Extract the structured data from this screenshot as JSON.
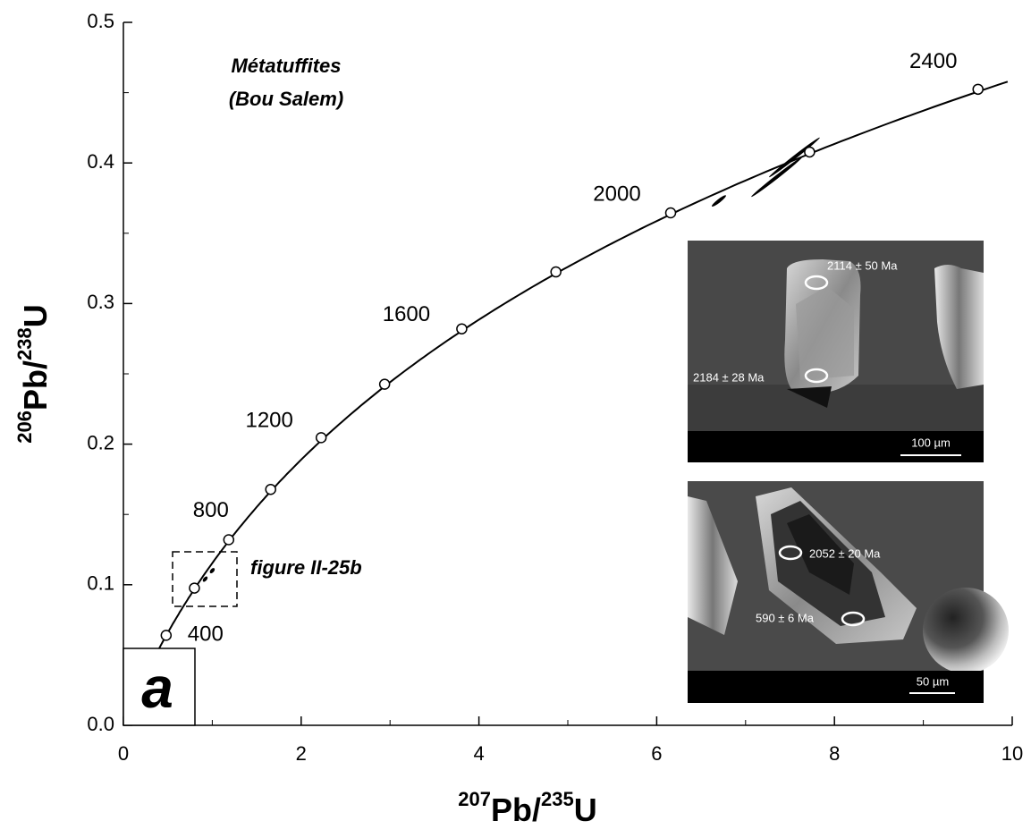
{
  "chart_data": {
    "type": "concordia",
    "title": [
      "Métatuffites",
      "(Bou Salem)"
    ],
    "xlabel": [
      "207",
      "Pb/",
      "235",
      "U"
    ],
    "ylabel": [
      "206",
      "Pb/",
      "238",
      "U"
    ],
    "panel_label": "a",
    "inset_reference": "figure II-25b",
    "xlim": [
      0,
      10
    ],
    "ylim": [
      0,
      0.5
    ],
    "xticks": [
      0,
      2,
      4,
      6,
      8,
      10
    ],
    "yticks": [
      {
        "value": 0,
        "label": "0.0"
      },
      0.1,
      0.2,
      0.3,
      0.4,
      0.5
    ],
    "concordia": {
      "age": [
        400,
        600,
        800,
        1000,
        1200,
        1400,
        1600,
        1800,
        2000,
        2200,
        2400
      ],
      "x": [
        0.481,
        0.799,
        1.185,
        1.657,
        2.225,
        2.939,
        3.807,
        4.866,
        6.157,
        7.72,
        9.615
      ],
      "y": [
        0.064,
        0.0976,
        0.132,
        0.1678,
        0.2046,
        0.2426,
        0.282,
        0.3225,
        0.3645,
        0.4078,
        0.4524
      ]
    },
    "analyses": {
      "x": [
        0.82,
        0.92,
        1.0,
        6.7,
        7.35,
        7.55
      ],
      "y": [
        0.098,
        0.104,
        0.11,
        0.373,
        0.39,
        0.404
      ]
    },
    "images": [
      {
        "spots": [
          "2114 ± 50 Ma",
          "2184 ± 28 Ma"
        ],
        "scale_bar": "100 µm"
      },
      {
        "spots": [
          "2052 ± 20 Ma",
          "590 ± 6 Ma"
        ],
        "scale_bar": "50 µm"
      }
    ]
  }
}
